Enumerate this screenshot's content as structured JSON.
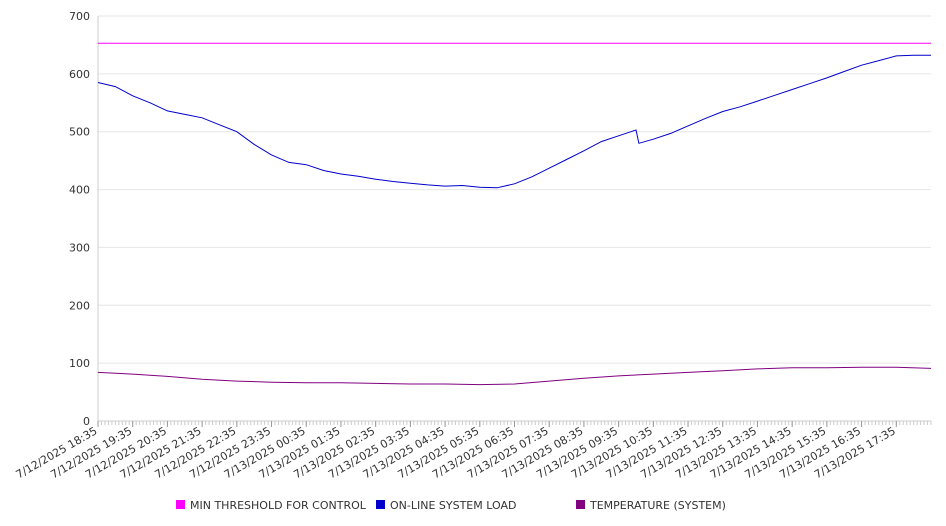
{
  "chart_data": {
    "type": "line",
    "ylim": [
      0,
      700
    ],
    "yticks": [
      0,
      100,
      200,
      300,
      400,
      500,
      600,
      700
    ],
    "grid": true,
    "legend_position": "bottom",
    "x_tick_labels": [
      "7/12/2025 18:35",
      "7/12/2025 19:35",
      "7/12/2025 20:35",
      "7/12/2025 21:35",
      "7/12/2025 22:35",
      "7/12/2025 23:35",
      "7/13/2025 00:35",
      "7/13/2025 01:35",
      "7/13/2025 02:35",
      "7/13/2025 03:35",
      "7/13/2025 04:35",
      "7/13/2025 05:35",
      "7/13/2025 06:35",
      "7/13/2025 07:35",
      "7/13/2025 08:35",
      "7/13/2025 09:35",
      "7/13/2025 10:35",
      "7/13/2025 11:35",
      "7/13/2025 12:35",
      "7/13/2025 13:35",
      "7/13/2025 14:35",
      "7/13/2025 15:35",
      "7/13/2025 16:35",
      "7/13/2025 17:35"
    ],
    "x_range": [
      "7/12/2025 18:35",
      "7/13/2025 18:35"
    ],
    "series": [
      {
        "name": "MIN THRESHOLD FOR CONTROL",
        "color": "#ff00ff",
        "points": [
          [
            "7/12/2025 18:35",
            653
          ],
          [
            "7/13/2025 18:35",
            653
          ]
        ]
      },
      {
        "name": "ON-LINE SYSTEM LOAD",
        "color": "#0000cc",
        "points": [
          [
            "7/12/2025 18:35",
            585
          ],
          [
            "7/12/2025 19:05",
            578
          ],
          [
            "7/12/2025 19:35",
            562
          ],
          [
            "7/12/2025 20:05",
            550
          ],
          [
            "7/12/2025 20:35",
            536
          ],
          [
            "7/12/2025 21:05",
            530
          ],
          [
            "7/12/2025 21:35",
            524
          ],
          [
            "7/12/2025 22:05",
            512
          ],
          [
            "7/12/2025 22:35",
            500
          ],
          [
            "7/12/2025 23:05",
            478
          ],
          [
            "7/12/2025 23:35",
            460
          ],
          [
            "7/13/2025 00:05",
            447
          ],
          [
            "7/13/2025 00:35",
            443
          ],
          [
            "7/13/2025 01:05",
            433
          ],
          [
            "7/13/2025 01:35",
            427
          ],
          [
            "7/13/2025 02:05",
            423
          ],
          [
            "7/13/2025 02:35",
            418
          ],
          [
            "7/13/2025 03:05",
            414
          ],
          [
            "7/13/2025 03:35",
            411
          ],
          [
            "7/13/2025 04:05",
            408
          ],
          [
            "7/13/2025 04:35",
            406
          ],
          [
            "7/13/2025 05:05",
            407
          ],
          [
            "7/13/2025 05:35",
            404
          ],
          [
            "7/13/2025 06:05",
            403
          ],
          [
            "7/13/2025 06:35",
            410
          ],
          [
            "7/13/2025 07:05",
            422
          ],
          [
            "7/13/2025 07:35",
            437
          ],
          [
            "7/13/2025 08:05",
            452
          ],
          [
            "7/13/2025 08:35",
            467
          ],
          [
            "7/13/2025 09:05",
            483
          ],
          [
            "7/13/2025 09:35",
            493
          ],
          [
            "7/13/2025 10:05",
            503
          ],
          [
            "7/13/2025 10:10",
            480
          ],
          [
            "7/13/2025 10:35",
            487
          ],
          [
            "7/13/2025 11:05",
            497
          ],
          [
            "7/13/2025 11:35",
            510
          ],
          [
            "7/13/2025 12:05",
            523
          ],
          [
            "7/13/2025 12:35",
            535
          ],
          [
            "7/13/2025 13:05",
            543
          ],
          [
            "7/13/2025 13:35",
            553
          ],
          [
            "7/13/2025 14:05",
            563
          ],
          [
            "7/13/2025 14:35",
            573
          ],
          [
            "7/13/2025 15:05",
            583
          ],
          [
            "7/13/2025 15:35",
            593
          ],
          [
            "7/13/2025 16:05",
            604
          ],
          [
            "7/13/2025 16:35",
            615
          ],
          [
            "7/13/2025 17:05",
            623
          ],
          [
            "7/13/2025 17:35",
            631
          ],
          [
            "7/13/2025 18:05",
            632
          ],
          [
            "7/13/2025 18:35",
            632
          ]
        ]
      },
      {
        "name": "TEMPERATURE (SYSTEM)",
        "color": "#800080",
        "points": [
          [
            "7/12/2025 18:35",
            84
          ],
          [
            "7/12/2025 19:35",
            81
          ],
          [
            "7/12/2025 20:35",
            77
          ],
          [
            "7/12/2025 21:35",
            72
          ],
          [
            "7/12/2025 22:35",
            69
          ],
          [
            "7/12/2025 23:35",
            67
          ],
          [
            "7/13/2025 00:35",
            66
          ],
          [
            "7/13/2025 01:35",
            66
          ],
          [
            "7/13/2025 02:35",
            65
          ],
          [
            "7/13/2025 03:35",
            64
          ],
          [
            "7/13/2025 04:35",
            64
          ],
          [
            "7/13/2025 05:35",
            63
          ],
          [
            "7/13/2025 06:35",
            64
          ],
          [
            "7/13/2025 07:35",
            69
          ],
          [
            "7/13/2025 08:35",
            74
          ],
          [
            "7/13/2025 09:35",
            78
          ],
          [
            "7/13/2025 10:35",
            81
          ],
          [
            "7/13/2025 11:35",
            84
          ],
          [
            "7/13/2025 12:35",
            87
          ],
          [
            "7/13/2025 13:35",
            90
          ],
          [
            "7/13/2025 14:35",
            92
          ],
          [
            "7/13/2025 15:35",
            92
          ],
          [
            "7/13/2025 16:35",
            93
          ],
          [
            "7/13/2025 17:35",
            93
          ],
          [
            "7/13/2025 18:35",
            91
          ]
        ]
      }
    ]
  }
}
